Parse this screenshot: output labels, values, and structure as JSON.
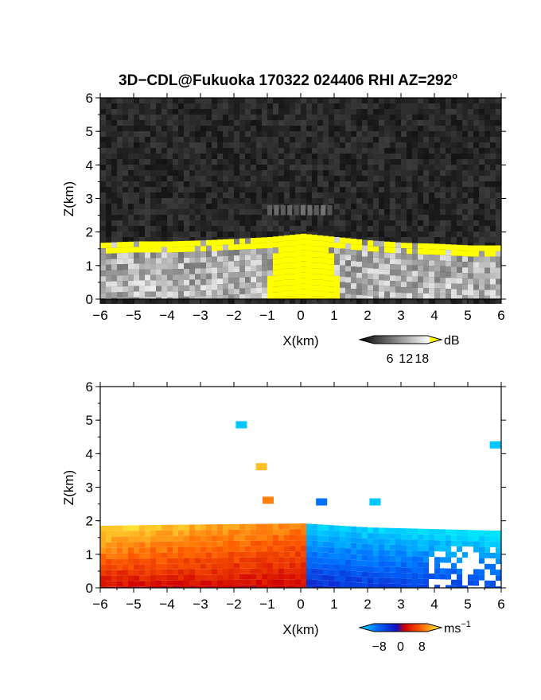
{
  "figure": {
    "title": "3D−CDL@Fukuoka 170322 024406 RHI AZ=292",
    "title_degree": "o"
  },
  "chart_data": [
    {
      "type": "heatmap",
      "panel": "reflectivity",
      "xlabel": "X(km)",
      "ylabel": "Z(km)",
      "xlim": [
        -6,
        6
      ],
      "ylim": [
        0,
        6
      ],
      "x_ticks": [
        -6,
        -5,
        -4,
        -3,
        -2,
        -1,
        0,
        1,
        2,
        3,
        4,
        5,
        6
      ],
      "y_ticks": [
        0,
        1,
        2,
        3,
        4,
        5,
        6
      ],
      "colorbar": {
        "unit": "dB",
        "ticks": [
          6,
          12,
          18
        ],
        "range": [
          0,
          20
        ],
        "colors": [
          "#000000",
          "#ffffff",
          "#ffff00"
        ]
      },
      "background_color": "#262626",
      "saturation_color": "#ffff00",
      "layer_top_km": [
        [
          -6,
          1.68
        ],
        [
          -5,
          1.72
        ],
        [
          -4,
          1.72
        ],
        [
          -3,
          1.75
        ],
        [
          -2,
          1.8
        ],
        [
          -1,
          1.85
        ],
        [
          0,
          1.95
        ],
        [
          1,
          1.85
        ],
        [
          2,
          1.75
        ],
        [
          3,
          1.68
        ],
        [
          4,
          1.65
        ],
        [
          5,
          1.6
        ],
        [
          6,
          1.6
        ]
      ],
      "features": [
        {
          "label": "elevated echo",
          "x_range": [
            -1,
            1
          ],
          "z_range": [
            2.5,
            2.8
          ]
        }
      ]
    },
    {
      "type": "heatmap",
      "panel": "doppler_velocity",
      "xlabel": "X(km)",
      "ylabel": "Z(km)",
      "xlim": [
        -6,
        6
      ],
      "ylim": [
        0,
        6
      ],
      "x_ticks": [
        -6,
        -5,
        -4,
        -3,
        -2,
        -1,
        0,
        1,
        2,
        3,
        4,
        5,
        6
      ],
      "y_ticks": [
        0,
        1,
        2,
        3,
        4,
        5,
        6
      ],
      "colorbar": {
        "unit": "ms",
        "unit_exp": "−1",
        "ticks": [
          -8,
          0,
          8
        ],
        "tick_labels": [
          "−8",
          "0",
          "8"
        ],
        "range": [
          -10,
          10
        ],
        "colors": [
          "#00e5ff",
          "#0050ff",
          "#1010c0",
          "#d00000",
          "#ff6000",
          "#ffd000",
          "#ffff40"
        ]
      },
      "layer_top_km": [
        [
          -6,
          1.85
        ],
        [
          -4,
          1.88
        ],
        [
          -2,
          1.9
        ],
        [
          0,
          1.92
        ],
        [
          2,
          1.8
        ],
        [
          4,
          1.75
        ],
        [
          6,
          1.7
        ]
      ],
      "velocity_left_ms": 6,
      "velocity_right_ms": -6,
      "features": [
        {
          "label": "patch",
          "x": -1,
          "z": 2.6,
          "value_ms": 6
        },
        {
          "label": "patch",
          "x": -1.2,
          "z": 3.6,
          "value_ms": 8
        },
        {
          "label": "patch",
          "x": 0.6,
          "z": 2.55,
          "value_ms": -6
        },
        {
          "label": "patch",
          "x": 2.2,
          "z": 2.55,
          "value_ms": -9
        },
        {
          "label": "patch",
          "x": -1.8,
          "z": 4.85,
          "value_ms": -9
        },
        {
          "label": "patch",
          "x": 5.8,
          "z": 4.25,
          "value_ms": -9
        }
      ]
    }
  ]
}
